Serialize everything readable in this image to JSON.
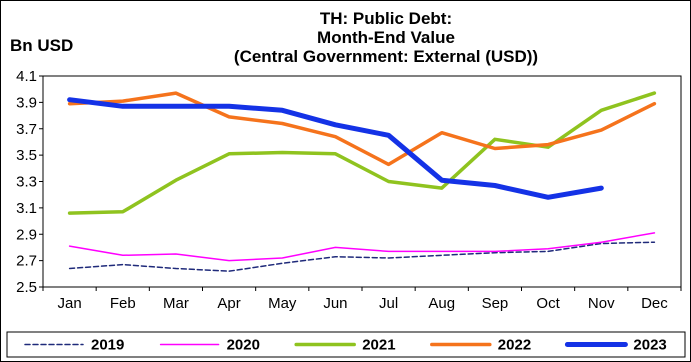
{
  "chart_data": {
    "type": "line",
    "title_lines": [
      "TH: Public Debt:",
      "Month-End Value",
      "(Central Government: External (USD))"
    ],
    "ylabel": "Bn USD",
    "xlabel": "",
    "categories": [
      "Jan",
      "Feb",
      "Mar",
      "Apr",
      "May",
      "Jun",
      "Jul",
      "Aug",
      "Sep",
      "Oct",
      "Nov",
      "Dec"
    ],
    "ylim": [
      2.5,
      4.1
    ],
    "yticks": [
      "4.1",
      "3.9",
      "3.7",
      "3.5",
      "3.3",
      "3.1",
      "2.9",
      "2.7",
      "2.5"
    ],
    "grid": false,
    "legend_position": "bottom",
    "series": [
      {
        "name": "2019",
        "color": "#1f2a7a",
        "style": "dashed",
        "values": [
          2.64,
          2.67,
          2.64,
          2.62,
          2.68,
          2.73,
          2.72,
          2.74,
          2.76,
          2.77,
          2.83,
          2.84
        ]
      },
      {
        "name": "2020",
        "color": "#ff00ff",
        "style": "thin",
        "values": [
          2.81,
          2.74,
          2.75,
          2.7,
          2.72,
          2.8,
          2.77,
          2.77,
          2.77,
          2.79,
          2.84,
          2.91
        ]
      },
      {
        "name": "2021",
        "color": "#8fc31f",
        "style": "thick",
        "values": [
          3.06,
          3.07,
          3.31,
          3.51,
          3.52,
          3.51,
          3.3,
          3.25,
          3.62,
          3.56,
          3.84,
          3.97
        ]
      },
      {
        "name": "2022",
        "color": "#f5731c",
        "style": "thick",
        "values": [
          3.89,
          3.91,
          3.97,
          3.79,
          3.74,
          3.64,
          3.43,
          3.67,
          3.55,
          3.58,
          3.69,
          3.89
        ]
      },
      {
        "name": "2023",
        "color": "#1432e6",
        "style": "thicker",
        "values": [
          3.92,
          3.87,
          3.87,
          3.87,
          3.84,
          3.73,
          3.65,
          3.31,
          3.27,
          3.18,
          3.25,
          null
        ]
      }
    ]
  }
}
